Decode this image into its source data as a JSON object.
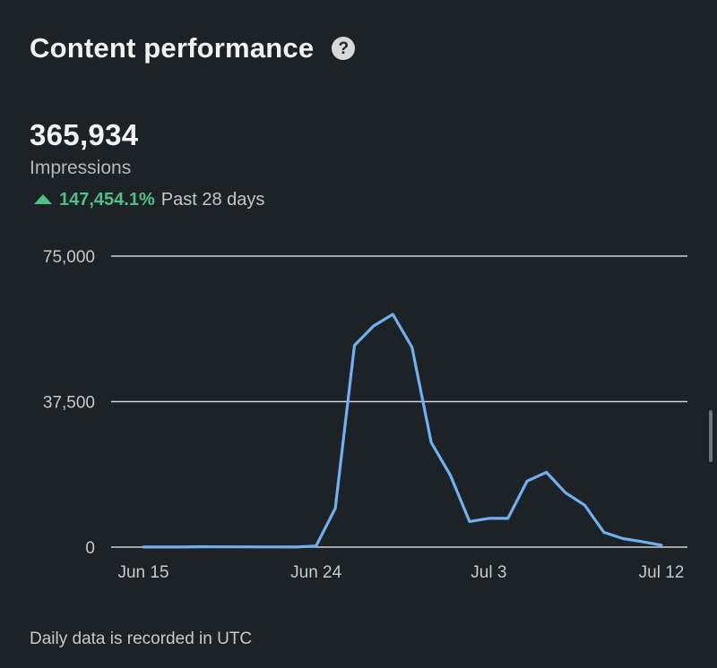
{
  "header": {
    "title": "Content performance",
    "help_icon": "help-icon",
    "help_glyph": "?"
  },
  "metric": {
    "value": "365,934",
    "label": "Impressions",
    "change_value": "147,454.1%",
    "change_period": "Past 28 days",
    "change_icon": "arrow-up-icon",
    "change_color": "#4fbf85"
  },
  "footer": {
    "note": "Daily data is recorded in UTC"
  },
  "chart_data": {
    "type": "line",
    "title": "",
    "xlabel": "",
    "ylabel": "",
    "ylim": [
      0,
      75000
    ],
    "yticks": [
      0,
      37500,
      75000
    ],
    "ytick_labels": [
      "0",
      "37,500",
      "75,000"
    ],
    "xtick_labels": [
      "Jun 15",
      "Jun 24",
      "Jul 3",
      "Jul 12"
    ],
    "grid": true,
    "line_color": "#6fb1ee",
    "x": [
      "Jun 15",
      "Jun 16",
      "Jun 17",
      "Jun 18",
      "Jun 19",
      "Jun 20",
      "Jun 21",
      "Jun 22",
      "Jun 23",
      "Jun 24",
      "Jun 25",
      "Jun 26",
      "Jun 27",
      "Jun 28",
      "Jun 29",
      "Jun 30",
      "Jul 1",
      "Jul 2",
      "Jul 3",
      "Jul 4",
      "Jul 5",
      "Jul 6",
      "Jul 7",
      "Jul 8",
      "Jul 9",
      "Jul 10",
      "Jul 11",
      "Jul 12"
    ],
    "series": [
      {
        "values": [
          20,
          30,
          20,
          100,
          80,
          60,
          50,
          40,
          20,
          300,
          10000,
          52000,
          57000,
          60000,
          51500,
          27000,
          18500,
          6600,
          7400,
          7400,
          17000,
          19300,
          14000,
          10800,
          3800,
          2200,
          1400,
          500
        ]
      }
    ]
  }
}
